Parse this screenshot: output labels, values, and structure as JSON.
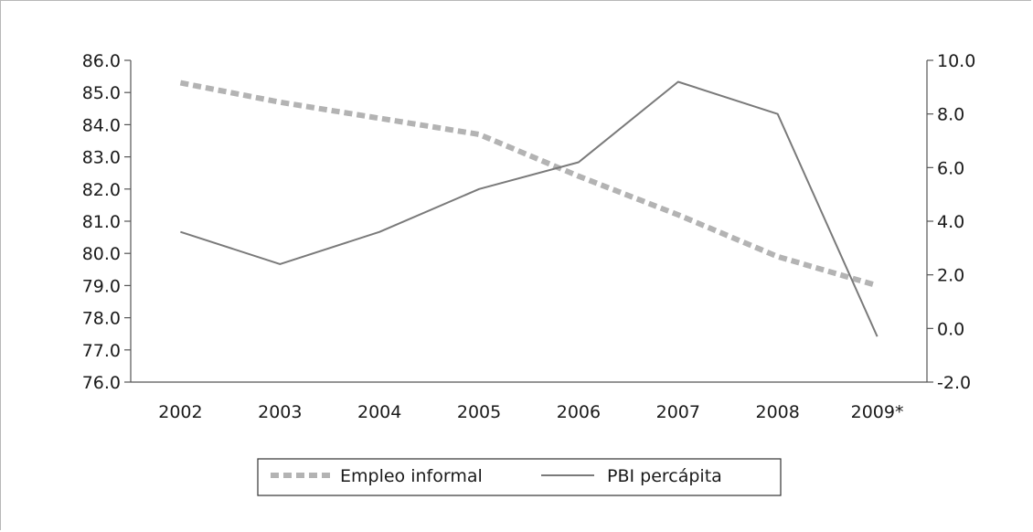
{
  "chart_data": {
    "type": "line",
    "title": "",
    "categories": [
      "2002",
      "2003",
      "2004",
      "2005",
      "2006",
      "2007",
      "2008",
      "2009*"
    ],
    "y_left": {
      "min": 76.0,
      "max": 86.0,
      "step": 1.0,
      "ticks": [
        "76.0",
        "77.0",
        "78.0",
        "79.0",
        "80.0",
        "81.0",
        "82.0",
        "83.0",
        "84.0",
        "85.0",
        "86.0"
      ]
    },
    "y_right": {
      "min": -2.0,
      "max": 10.0,
      "step": 2.0,
      "ticks": [
        "-2.0",
        "0.0",
        "2.0",
        "4.0",
        "6.0",
        "8.0",
        "10.0"
      ]
    },
    "series": [
      {
        "name": "Empleo informal",
        "axis": "left",
        "style": "dashed",
        "color": "#b3b3b3",
        "values": [
          85.3,
          84.7,
          84.2,
          83.7,
          82.4,
          81.2,
          79.9,
          79.0
        ]
      },
      {
        "name": "PBI percápita",
        "axis": "right",
        "style": "solid",
        "color": "#7a7a7a",
        "values": [
          3.6,
          2.4,
          3.6,
          5.2,
          6.2,
          9.2,
          8.0,
          -0.3
        ]
      }
    ],
    "legend_position": "bottom",
    "grid": false
  }
}
